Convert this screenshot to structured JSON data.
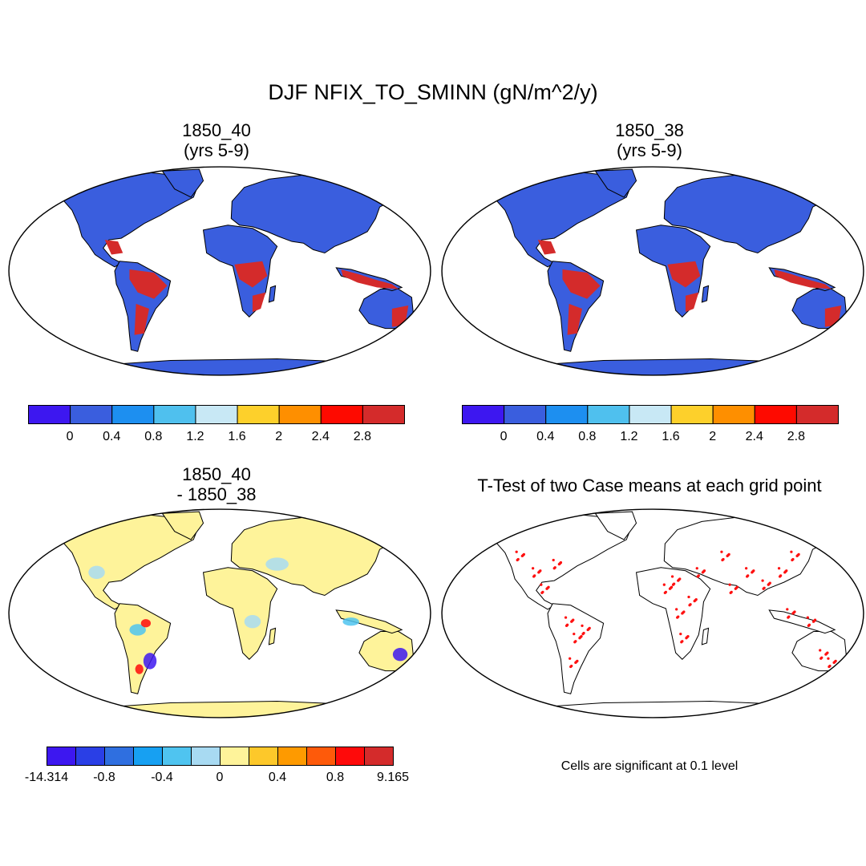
{
  "title": "DJF NFIX_TO_SMINN (gN/m^2/y)",
  "panels": [
    {
      "title_line1": "1850_40",
      "title_line2": "(yrs 5-9)"
    },
    {
      "title_line1": "1850_38",
      "title_line2": "(yrs 5-9)"
    },
    {
      "title_line1": "1850_40",
      "title_line2": "- 1850_38"
    },
    {
      "title_line1": "T-Test of two Case means at each grid point",
      "title_line2": ""
    }
  ],
  "colorbar_top": {
    "colors": [
      "#3d17f0",
      "#3a5ede",
      "#1d8ff0",
      "#4fc0ee",
      "#c8e8f5",
      "#fdd02b",
      "#fe8f00",
      "#fe0a00",
      "#d42b2b"
    ],
    "labels": [
      "0",
      "0.4",
      "0.8",
      "1.2",
      "1.6",
      "2",
      "2.4",
      "2.8"
    ]
  },
  "colorbar_diff": {
    "colors": [
      "#3d17f0",
      "#2a3fe6",
      "#2f6fe0",
      "#17a0f2",
      "#4fc4f0",
      "#a8daf2",
      "#fef39a",
      "#fdc82a",
      "#fe9a00",
      "#fe5a0a",
      "#fe0a0a",
      "#d42b2b"
    ],
    "labels": [
      "-14.314",
      "-0.8",
      "-0.4",
      "0",
      "0.4",
      "0.8",
      "9.165"
    ]
  },
  "ttest_note": "Cells are significant at 0.1 level",
  "map_colors": {
    "ocean": "#ffffff",
    "land_abs": "#3a5ede",
    "land_diff": "#fef39a",
    "tropics_abs": "#d42b2b",
    "significant": "#fe1010"
  }
}
